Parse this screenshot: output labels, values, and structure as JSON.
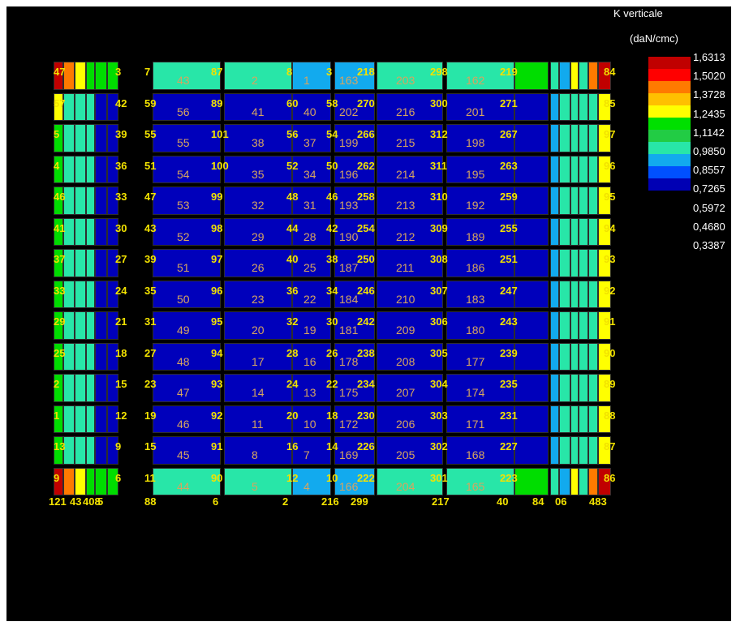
{
  "legend": {
    "title": "K verticale",
    "unit": "(daN/cmc)",
    "values": [
      "1,6313",
      "1,5020",
      "1,3728",
      "1,2435",
      "1,1142",
      "0,9850",
      "0,8557",
      "0,7265",
      "0,5972",
      "0,4680",
      "0,3387"
    ],
    "colors": [
      "#c00000",
      "#ff0000",
      "#ff7a00",
      "#ffc000",
      "#ffff00",
      "#00e000",
      "#22cc44",
      "#28e6a8",
      "#12aaee",
      "#0050ff",
      "#0000b4"
    ]
  },
  "cell_colors": {
    "dark_blue": "#0000bb",
    "teal": "#28e6a8",
    "cyan": "#12aaee",
    "green": "#00dd00",
    "yellow": "#ffff00",
    "red": "#c00000",
    "orange": "#ff7a00",
    "label_yellow": "#f2e200",
    "label_tan": "#d6a560"
  },
  "rows": [
    {
      "a": "47",
      "b": "3",
      "c": "7",
      "d": "43",
      "e": "87",
      "f": "2",
      "g": "8",
      "h": "1",
      "i": "3",
      "j": "163",
      "k": "218",
      "l": "203",
      "m": "298",
      "n": "162",
      "o": "219",
      "p": "84"
    },
    {
      "a": "57",
      "b": "42",
      "c": "59",
      "d": "56",
      "e": "89",
      "f": "41",
      "g": "60",
      "h": "40",
      "i": "58",
      "j": "202",
      "k": "270",
      "l": "216",
      "m": "300",
      "n": "201",
      "o": "271",
      "p": "85"
    },
    {
      "a": "5",
      "b": "39",
      "c": "55",
      "d": "55",
      "e": "101",
      "f": "38",
      "g": "56",
      "h": "37",
      "i": "54",
      "j": "199",
      "k": "266",
      "l": "215",
      "m": "312",
      "n": "198",
      "o": "267",
      "p": "97"
    },
    {
      "a": "4",
      "b": "36",
      "c": "51",
      "d": "54",
      "e": "100",
      "f": "35",
      "g": "52",
      "h": "34",
      "i": "50",
      "j": "196",
      "k": "262",
      "l": "214",
      "m": "311",
      "n": "195",
      "o": "263",
      "p": "96"
    },
    {
      "a": "46",
      "b": "33",
      "c": "47",
      "d": "53",
      "e": "99",
      "f": "32",
      "g": "48",
      "h": "31",
      "i": "46",
      "j": "193",
      "k": "258",
      "l": "213",
      "m": "310",
      "n": "192",
      "o": "259",
      "p": "95"
    },
    {
      "a": "41",
      "b": "30",
      "c": "43",
      "d": "52",
      "e": "98",
      "f": "29",
      "g": "44",
      "h": "28",
      "i": "42",
      "j": "190",
      "k": "254",
      "l": "212",
      "m": "309",
      "n": "189",
      "o": "255",
      "p": "94"
    },
    {
      "a": "37",
      "b": "27",
      "c": "39",
      "d": "51",
      "e": "97",
      "f": "26",
      "g": "40",
      "h": "25",
      "i": "38",
      "j": "187",
      "k": "250",
      "l": "211",
      "m": "308",
      "n": "186",
      "o": "251",
      "p": "93"
    },
    {
      "a": "33",
      "b": "24",
      "c": "35",
      "d": "50",
      "e": "96",
      "f": "23",
      "g": "36",
      "h": "22",
      "i": "34",
      "j": "184",
      "k": "246",
      "l": "210",
      "m": "307",
      "n": "183",
      "o": "247",
      "p": "92"
    },
    {
      "a": "29",
      "b": "21",
      "c": "31",
      "d": "49",
      "e": "95",
      "f": "20",
      "g": "32",
      "h": "19",
      "i": "30",
      "j": "181",
      "k": "242",
      "l": "209",
      "m": "306",
      "n": "180",
      "o": "243",
      "p": "91"
    },
    {
      "a": "25",
      "b": "18",
      "c": "27",
      "d": "48",
      "e": "94",
      "f": "17",
      "g": "28",
      "h": "16",
      "i": "26",
      "j": "178",
      "k": "238",
      "l": "208",
      "m": "305",
      "n": "177",
      "o": "239",
      "p": "90"
    },
    {
      "a": "2",
      "b": "15",
      "c": "23",
      "d": "47",
      "e": "93",
      "f": "14",
      "g": "24",
      "h": "13",
      "i": "22",
      "j": "175",
      "k": "234",
      "l": "207",
      "m": "304",
      "n": "174",
      "o": "235",
      "p": "89"
    },
    {
      "a": "1",
      "b": "12",
      "c": "19",
      "d": "46",
      "e": "92",
      "f": "11",
      "g": "20",
      "h": "10",
      "i": "18",
      "j": "172",
      "k": "230",
      "l": "206",
      "m": "303",
      "n": "171",
      "o": "231",
      "p": "88"
    },
    {
      "a": "13",
      "b": "9",
      "c": "15",
      "d": "45",
      "e": "91",
      "f": "8",
      "g": "16",
      "h": "7",
      "i": "14",
      "j": "169",
      "k": "226",
      "l": "205",
      "m": "302",
      "n": "168",
      "o": "227",
      "p": "87"
    },
    {
      "a": "9",
      "b": "6",
      "c": "11",
      "d": "44",
      "e": "90",
      "f": "5",
      "g": "12",
      "h": "4",
      "i": "10",
      "j": "166",
      "k": "222",
      "l": "204",
      "m": "301",
      "n": "165",
      "o": "223",
      "p": "86"
    }
  ],
  "bottom_labels": [
    "121",
    "43",
    "408",
    "5",
    "88",
    "6",
    "2",
    "216",
    "299",
    "217",
    "40",
    "84",
    "06",
    "483"
  ]
}
